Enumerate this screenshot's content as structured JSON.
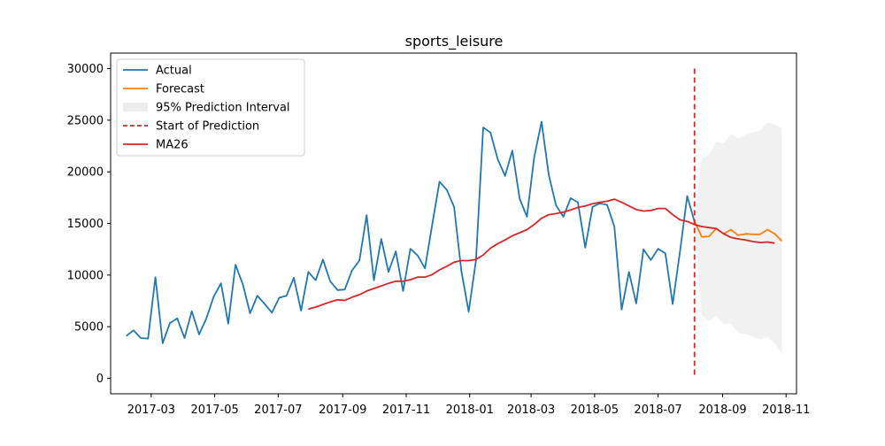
{
  "chart_data": {
    "type": "line",
    "title": "sports_leisure",
    "xlabel": "",
    "ylabel": "",
    "xlim": [
      "2017-01-21",
      "2018-11-11"
    ],
    "ylim": [
      -1500,
      31500
    ],
    "x_ticks": [
      {
        "date": "2017-03-01",
        "label": "2017-03"
      },
      {
        "date": "2017-05-01",
        "label": "2017-05"
      },
      {
        "date": "2017-07-01",
        "label": "2017-07"
      },
      {
        "date": "2017-09-01",
        "label": "2017-09"
      },
      {
        "date": "2017-11-01",
        "label": "2017-11"
      },
      {
        "date": "2018-01-01",
        "label": "2018-01"
      },
      {
        "date": "2018-03-01",
        "label": "2018-03"
      },
      {
        "date": "2018-05-01",
        "label": "2018-05"
      },
      {
        "date": "2018-07-01",
        "label": "2018-07"
      },
      {
        "date": "2018-09-01",
        "label": "2018-09"
      },
      {
        "date": "2018-11-01",
        "label": "2018-11"
      }
    ],
    "y_ticks": [
      0,
      5000,
      10000,
      15000,
      20000,
      25000,
      30000
    ],
    "y_tick_labels": [
      "0",
      "5000",
      "10000",
      "15000",
      "20000",
      "25000",
      "30000"
    ],
    "legend_position": "top-left",
    "legend": [
      "Actual",
      "Forecast",
      "95% Prediction Interval",
      "Start of Prediction",
      "MA26"
    ],
    "colors": {
      "actual": "#1f77b4",
      "forecast": "#ff7f0e",
      "interval": "#e5e5e5",
      "start": "#d62728",
      "ma": "#d62728"
    },
    "series": {
      "actual": {
        "start": "2017-02-05",
        "step_days": 7,
        "values": [
          4100,
          4650,
          3900,
          3850,
          9800,
          3400,
          5350,
          5800,
          3900,
          6500,
          4250,
          5800,
          7900,
          9200,
          5300,
          11000,
          9100,
          6300,
          8000,
          7200,
          6350,
          7800,
          8000,
          9750,
          6550,
          10300,
          9500,
          11500,
          9400,
          8550,
          8600,
          10450,
          11400,
          15800,
          9500,
          13500,
          10300,
          12300,
          8450,
          12550,
          11900,
          10650,
          14900,
          19050,
          18250,
          16600,
          10400,
          6450,
          11400,
          24300,
          23800,
          21200,
          19600,
          22050,
          17400,
          15650,
          21400,
          24850,
          19700,
          16750,
          15650,
          17450,
          17050,
          12650,
          16600,
          16950,
          16800,
          14700,
          6650,
          10300,
          7250,
          12500,
          11450,
          12550,
          12100,
          7200,
          12250,
          17650,
          15200
        ]
      },
      "forecast": {
        "start": "2018-08-05",
        "step_days": 7,
        "values": [
          15200,
          13700,
          13750,
          14500,
          14000,
          14400,
          13850,
          14000,
          13950,
          13950,
          14400,
          14000,
          13300
        ]
      },
      "interval": {
        "start": "2018-08-05",
        "step_days": 7,
        "lower": [
          15200,
          6100,
          5550,
          6050,
          5250,
          5300,
          4400,
          4300,
          4000,
          3800,
          4000,
          3400,
          2400
        ],
        "upper": [
          15200,
          21300,
          21700,
          22950,
          22750,
          23650,
          23200,
          23600,
          23800,
          24000,
          24800,
          24600,
          24200
        ]
      },
      "ma26": {
        "start": "2017-07-30",
        "step_days": 7,
        "values": [
          6700,
          6900,
          7150,
          7400,
          7600,
          7550,
          7850,
          8100,
          8450,
          8700,
          8950,
          9200,
          9400,
          9400,
          9550,
          9800,
          9800,
          10050,
          10500,
          10850,
          11250,
          11400,
          11400,
          11500,
          11950,
          12600,
          13050,
          13400,
          13800,
          14100,
          14400,
          14900,
          15500,
          15850,
          15950,
          16100,
          16300,
          16550,
          16700,
          16900,
          17050,
          17150,
          17350,
          17050,
          16700,
          16350,
          16200,
          16250,
          16450,
          16450,
          15850,
          15350,
          15200,
          14900,
          14700,
          14600,
          14500,
          14000,
          13650,
          13500,
          13400,
          13250,
          13150,
          13200,
          13100
        ]
      },
      "start_of_prediction": {
        "date": "2018-08-05",
        "y_range": [
          0,
          30000
        ]
      }
    }
  }
}
